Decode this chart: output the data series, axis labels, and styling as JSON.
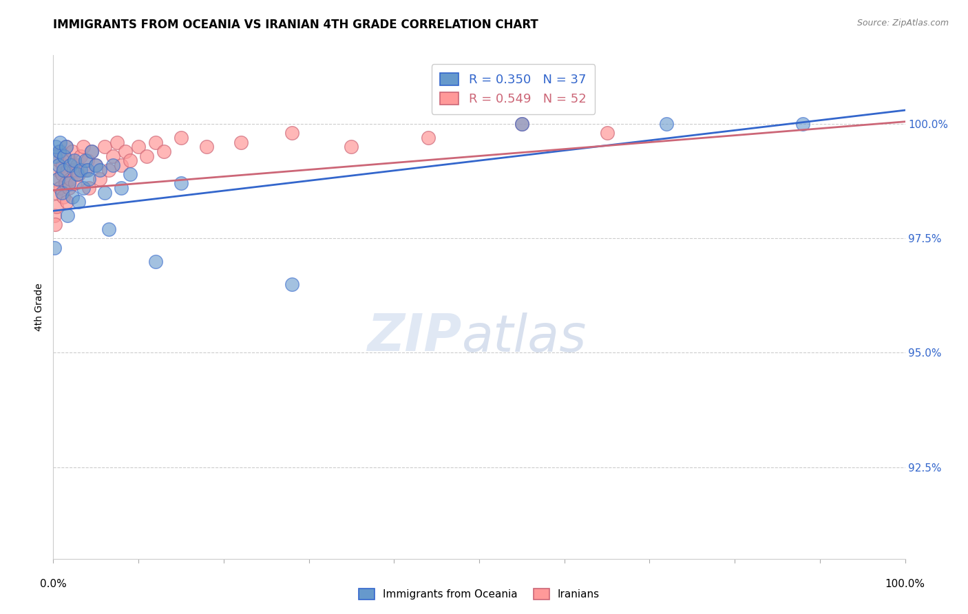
{
  "title": "IMMIGRANTS FROM OCEANIA VS IRANIAN 4TH GRADE CORRELATION CHART",
  "source": "Source: ZipAtlas.com",
  "ylabel": "4th Grade",
  "x_min": 0.0,
  "x_max": 1.0,
  "y_min": 90.5,
  "y_max": 101.5,
  "blue_R": 0.35,
  "blue_N": 37,
  "pink_R": 0.549,
  "pink_N": 52,
  "blue_color": "#6699CC",
  "pink_color": "#FF9999",
  "blue_line_color": "#3366CC",
  "pink_line_color": "#CC6677",
  "legend_label_blue": "Immigrants from Oceania",
  "legend_label_pink": "Iranians",
  "blue_line_x0": 0.0,
  "blue_line_x1": 1.0,
  "blue_line_y0": 98.1,
  "blue_line_y1": 100.3,
  "pink_line_x0": 0.0,
  "pink_line_x1": 1.0,
  "pink_line_y0": 98.55,
  "pink_line_y1": 100.05,
  "blue_points_x": [
    0.002,
    0.003,
    0.005,
    0.006,
    0.007,
    0.008,
    0.01,
    0.012,
    0.013,
    0.015,
    0.017,
    0.018,
    0.02,
    0.022,
    0.025,
    0.028,
    0.03,
    0.032,
    0.035,
    0.038,
    0.04,
    0.042,
    0.045,
    0.05,
    0.055,
    0.06,
    0.065,
    0.07,
    0.08,
    0.09,
    0.12,
    0.15,
    0.28,
    0.55,
    0.72,
    0.88,
    0.001
  ],
  "blue_points_y": [
    99.3,
    99.5,
    98.8,
    99.1,
    99.4,
    99.6,
    98.5,
    99.0,
    99.3,
    99.5,
    98.0,
    98.7,
    99.1,
    98.4,
    99.2,
    98.9,
    98.3,
    99.0,
    98.6,
    99.2,
    99.0,
    98.8,
    99.4,
    99.1,
    99.0,
    98.5,
    97.7,
    99.1,
    98.6,
    98.9,
    97.0,
    98.7,
    96.5,
    100.0,
    100.0,
    100.0,
    97.3
  ],
  "pink_points_x": [
    0.001,
    0.002,
    0.003,
    0.004,
    0.005,
    0.006,
    0.007,
    0.008,
    0.009,
    0.01,
    0.011,
    0.012,
    0.013,
    0.014,
    0.015,
    0.016,
    0.017,
    0.018,
    0.019,
    0.02,
    0.022,
    0.024,
    0.026,
    0.028,
    0.03,
    0.032,
    0.035,
    0.038,
    0.04,
    0.042,
    0.045,
    0.05,
    0.055,
    0.06,
    0.065,
    0.07,
    0.075,
    0.08,
    0.085,
    0.09,
    0.1,
    0.11,
    0.12,
    0.13,
    0.15,
    0.18,
    0.22,
    0.28,
    0.35,
    0.44,
    0.55,
    0.65
  ],
  "pink_points_y": [
    98.0,
    97.8,
    98.5,
    98.2,
    99.0,
    98.8,
    99.2,
    98.6,
    99.4,
    98.9,
    99.1,
    98.4,
    99.3,
    98.7,
    99.5,
    98.3,
    99.0,
    98.6,
    99.2,
    98.8,
    99.4,
    99.0,
    98.7,
    99.1,
    98.9,
    99.3,
    99.5,
    99.0,
    99.2,
    98.6,
    99.4,
    99.1,
    98.8,
    99.5,
    99.0,
    99.3,
    99.6,
    99.1,
    99.4,
    99.2,
    99.5,
    99.3,
    99.6,
    99.4,
    99.7,
    99.5,
    99.6,
    99.8,
    99.5,
    99.7,
    100.0,
    99.8
  ]
}
